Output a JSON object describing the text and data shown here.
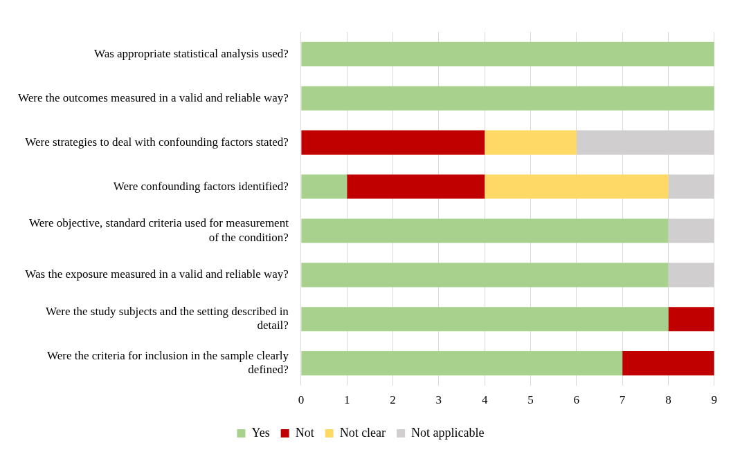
{
  "chart_data": {
    "type": "bar",
    "orientation": "horizontal",
    "stacked": true,
    "categories": [
      "Was appropriate statistical analysis used?",
      "Were the outcomes measured in a valid and reliable way?",
      "Were strategies to deal with confounding factors stated?",
      "Were confounding factors identified?",
      "Were objective, standard criteria used for measurement of the condition?",
      "Was the exposure measured in a valid and reliable way?",
      "Were the study subjects and the setting described in detail?",
      "Were the criteria for inclusion in the sample clearly defined?"
    ],
    "series": [
      {
        "name": "Yes",
        "color": "#a9d18e",
        "values": [
          9,
          9,
          null,
          1,
          8,
          8,
          8,
          7
        ]
      },
      {
        "name": "Not",
        "color": "#c00000",
        "values": [
          null,
          null,
          4,
          3,
          null,
          null,
          1,
          2
        ]
      },
      {
        "name": "Not clear",
        "color": "#ffd966",
        "values": [
          null,
          null,
          2,
          4,
          null,
          null,
          null,
          null
        ]
      },
      {
        "name": "Not applicable",
        "color": "#d0cecf",
        "values": [
          null,
          null,
          3,
          1,
          1,
          1,
          null,
          null
        ]
      }
    ],
    "xlim": [
      0,
      9
    ],
    "xticks": [
      0,
      1,
      2,
      3,
      4,
      5,
      6,
      7,
      8,
      9
    ],
    "grid": "x",
    "legend": "bottom"
  }
}
